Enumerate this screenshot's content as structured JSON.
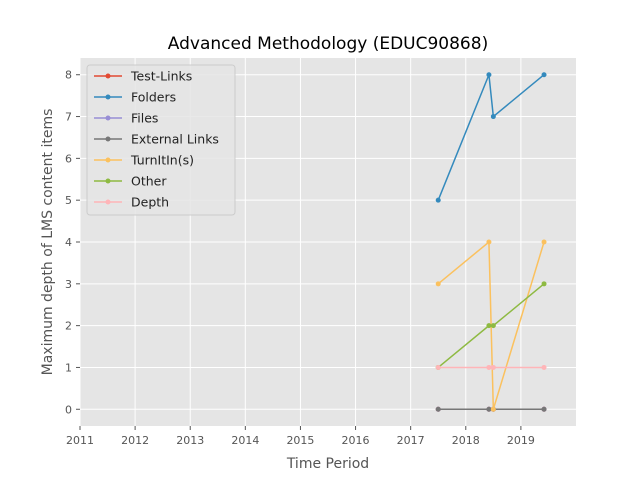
{
  "chart_data": {
    "type": "line",
    "title": "Advanced Methodology (EDUC90868)",
    "xlabel": "Time Period",
    "ylabel": "Maximum depth of LMS content items",
    "xlim": [
      2011,
      2020
    ],
    "ylim": [
      -0.4,
      8.4
    ],
    "xticks": [
      "2011",
      "2012",
      "2013",
      "2014",
      "2015",
      "2016",
      "2017",
      "2018",
      "2019"
    ],
    "yticks": [
      "0",
      "1",
      "2",
      "3",
      "4",
      "5",
      "6",
      "7",
      "8"
    ],
    "grid": true,
    "legend_position": "upper-left",
    "x": [
      2017.5,
      2018.42,
      2018.5,
      2019.42
    ],
    "series": [
      {
        "name": "Test-Links",
        "color": "#E24A33",
        "values": [
          0,
          0,
          0,
          0
        ]
      },
      {
        "name": "Folders",
        "color": "#348ABD",
        "values": [
          5,
          8,
          7,
          8
        ]
      },
      {
        "name": "Files",
        "color": "#988ED5",
        "values": [
          0,
          0,
          0,
          0
        ]
      },
      {
        "name": "External Links",
        "color": "#777777",
        "values": [
          0,
          0,
          0,
          0
        ]
      },
      {
        "name": "TurnItIn(s)",
        "color": "#FBC15E",
        "values": [
          3,
          4,
          0,
          4
        ]
      },
      {
        "name": "Other",
        "color": "#8EBA42",
        "values": [
          1,
          2,
          2,
          3
        ]
      },
      {
        "name": "Depth",
        "color": "#FFB5B8",
        "values": [
          1,
          1,
          1,
          1
        ]
      }
    ]
  }
}
